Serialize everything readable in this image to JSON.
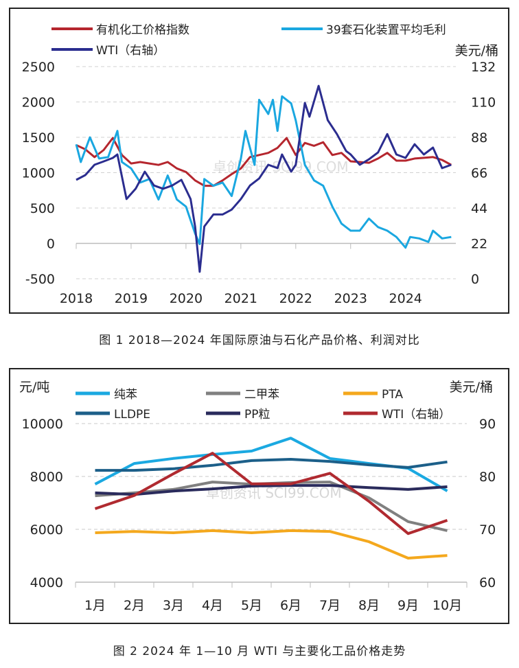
{
  "chart_data": [
    {
      "type": "line",
      "caption": "图 1 2018—2024 年国际原油与石化产品价格、利润对比",
      "right_axis_unit": "美元/桶",
      "xlim": [
        "2018-01",
        "2024-11"
      ],
      "x_ticks": [
        "2018",
        "2019",
        "2020",
        "2021",
        "2022",
        "2023",
        "2024"
      ],
      "y_left": {
        "lim": [
          -500,
          2500
        ],
        "ticks": [
          "-500",
          "0",
          "500",
          "1000",
          "1500",
          "2000",
          "2500"
        ]
      },
      "y_right": {
        "lim": [
          0,
          132
        ],
        "ticks": [
          "0",
          "22",
          "44",
          "66",
          "88",
          "110",
          "132"
        ]
      },
      "grid": true,
      "legend_position": "top",
      "watermark": "卓创资讯 SCI99.COM",
      "series": [
        {
          "name": "有机化工价格指数",
          "axis": "left",
          "color": "#b5262e",
          "points": [
            [
              "2018-01",
              1390
            ],
            [
              "2018-03",
              1330
            ],
            [
              "2018-05",
              1220
            ],
            [
              "2018-07",
              1320
            ],
            [
              "2018-09",
              1490
            ],
            [
              "2018-11",
              1250
            ],
            [
              "2019-01",
              1130
            ],
            [
              "2019-03",
              1150
            ],
            [
              "2019-05",
              1130
            ],
            [
              "2019-07",
              1110
            ],
            [
              "2019-09",
              1150
            ],
            [
              "2019-11",
              1060
            ],
            [
              "2020-01",
              1010
            ],
            [
              "2020-03",
              890
            ],
            [
              "2020-05",
              815
            ],
            [
              "2020-07",
              815
            ],
            [
              "2020-09",
              890
            ],
            [
              "2020-11",
              980
            ],
            [
              "2021-01",
              1060
            ],
            [
              "2021-03",
              1220
            ],
            [
              "2021-05",
              1250
            ],
            [
              "2021-07",
              1280
            ],
            [
              "2021-09",
              1350
            ],
            [
              "2021-11",
              1490
            ],
            [
              "2022-01",
              1250
            ],
            [
              "2022-03",
              1420
            ],
            [
              "2022-05",
              1380
            ],
            [
              "2022-07",
              1430
            ],
            [
              "2022-09",
              1250
            ],
            [
              "2022-11",
              1280
            ],
            [
              "2023-01",
              1160
            ],
            [
              "2023-03",
              1150
            ],
            [
              "2023-05",
              1140
            ],
            [
              "2023-07",
              1200
            ],
            [
              "2023-09",
              1280
            ],
            [
              "2023-11",
              1170
            ],
            [
              "2024-01",
              1170
            ],
            [
              "2024-03",
              1200
            ],
            [
              "2024-05",
              1210
            ],
            [
              "2024-07",
              1220
            ],
            [
              "2024-09",
              1180
            ],
            [
              "2024-11",
              1110
            ]
          ]
        },
        {
          "name": "39套石化装置平均毛利",
          "axis": "left",
          "color": "#1aa7e0",
          "points": [
            [
              "2018-01",
              1400
            ],
            [
              "2018-02",
              1150
            ],
            [
              "2018-04",
              1500
            ],
            [
              "2018-06",
              1200
            ],
            [
              "2018-08",
              1220
            ],
            [
              "2018-10",
              1590
            ],
            [
              "2018-11",
              1150
            ],
            [
              "2019-01",
              1060
            ],
            [
              "2019-03",
              860
            ],
            [
              "2019-05",
              910
            ],
            [
              "2019-07",
              620
            ],
            [
              "2019-09",
              960
            ],
            [
              "2019-11",
              620
            ],
            [
              "2020-01",
              520
            ],
            [
              "2020-03",
              140
            ],
            [
              "2020-04",
              -10
            ],
            [
              "2020-05",
              910
            ],
            [
              "2020-07",
              815
            ],
            [
              "2020-09",
              860
            ],
            [
              "2020-11",
              670
            ],
            [
              "2021-01",
              1200
            ],
            [
              "2021-02",
              1590
            ],
            [
              "2021-04",
              1110
            ],
            [
              "2021-05",
              2030
            ],
            [
              "2021-07",
              1830
            ],
            [
              "2021-08",
              2030
            ],
            [
              "2021-09",
              1590
            ],
            [
              "2021-10",
              2080
            ],
            [
              "2021-12",
              1980
            ],
            [
              "2022-01",
              1740
            ],
            [
              "2022-03",
              1110
            ],
            [
              "2022-05",
              890
            ],
            [
              "2022-07",
              815
            ],
            [
              "2022-09",
              520
            ],
            [
              "2022-11",
              280
            ],
            [
              "2023-01",
              180
            ],
            [
              "2023-03",
              180
            ],
            [
              "2023-05",
              350
            ],
            [
              "2023-07",
              230
            ],
            [
              "2023-09",
              180
            ],
            [
              "2023-11",
              90
            ],
            [
              "2024-01",
              -60
            ],
            [
              "2024-02",
              90
            ],
            [
              "2024-04",
              70
            ],
            [
              "2024-06",
              20
            ],
            [
              "2024-07",
              180
            ],
            [
              "2024-09",
              70
            ],
            [
              "2024-11",
              90
            ]
          ]
        },
        {
          "name": "WTI（右轴）",
          "axis": "right",
          "color": "#2b2d8f",
          "points": [
            [
              "2018-01",
              61.5
            ],
            [
              "2018-03",
              64.5
            ],
            [
              "2018-05",
              70.9
            ],
            [
              "2018-07",
              73.0
            ],
            [
              "2018-09",
              75.2
            ],
            [
              "2018-10",
              77.3
            ],
            [
              "2018-12",
              49.6
            ],
            [
              "2019-02",
              56
            ],
            [
              "2019-04",
              66.6
            ],
            [
              "2019-06",
              58
            ],
            [
              "2019-08",
              56
            ],
            [
              "2019-10",
              58
            ],
            [
              "2019-12",
              61.5
            ],
            [
              "2020-02",
              49.6
            ],
            [
              "2020-03",
              32.5
            ],
            [
              "2020-04",
              4.3
            ],
            [
              "2020-05",
              32.5
            ],
            [
              "2020-07",
              40
            ],
            [
              "2020-09",
              40
            ],
            [
              "2020-11",
              43
            ],
            [
              "2021-01",
              49.6
            ],
            [
              "2021-03",
              58
            ],
            [
              "2021-05",
              62.4
            ],
            [
              "2021-07",
              70.9
            ],
            [
              "2021-09",
              68.8
            ],
            [
              "2021-10",
              77.3
            ],
            [
              "2021-12",
              66.6
            ],
            [
              "2022-01",
              70.9
            ],
            [
              "2022-03",
              109.4
            ],
            [
              "2022-04",
              100.8
            ],
            [
              "2022-06",
              120
            ],
            [
              "2022-08",
              98.7
            ],
            [
              "2022-10",
              90
            ],
            [
              "2022-12",
              79.5
            ],
            [
              "2023-01",
              77.3
            ],
            [
              "2023-03",
              70.9
            ],
            [
              "2023-05",
              74.3
            ],
            [
              "2023-07",
              78.6
            ],
            [
              "2023-09",
              90
            ],
            [
              "2023-11",
              77.3
            ],
            [
              "2024-01",
              75.2
            ],
            [
              "2024-03",
              83.7
            ],
            [
              "2024-05",
              77.3
            ],
            [
              "2024-07",
              81.6
            ],
            [
              "2024-09",
              68.8
            ],
            [
              "2024-11",
              70.9
            ]
          ]
        }
      ]
    },
    {
      "type": "line",
      "caption": "图 2  2024 年 1—10 月 WTI 与主要化工品价格走势",
      "left_axis_unit": "元/吨",
      "right_axis_unit": "美元/桶",
      "categories": [
        "1月",
        "2月",
        "3月",
        "4月",
        "5月",
        "6月",
        "7月",
        "8月",
        "9月",
        "10月"
      ],
      "y_left": {
        "lim": [
          4000,
          10000
        ],
        "ticks": [
          "4000",
          "6000",
          "8000",
          "10000"
        ]
      },
      "y_right": {
        "lim": [
          60,
          90
        ],
        "ticks": [
          "60",
          "70",
          "80",
          "90"
        ]
      },
      "grid": true,
      "legend_position": "top",
      "watermark": "卓创资讯 SCI99.COM",
      "series": [
        {
          "name": "纯苯",
          "axis": "left",
          "color": "#1ba9e1",
          "values": [
            7710,
            8490,
            8680,
            8830,
            8960,
            9450,
            8680,
            8490,
            8310,
            7450
          ]
        },
        {
          "name": "二甲苯",
          "axis": "left",
          "color": "#808080",
          "values": [
            7270,
            7380,
            7510,
            7790,
            7710,
            7770,
            7790,
            7190,
            6290,
            5950
          ]
        },
        {
          "name": "PTA",
          "axis": "left",
          "color": "#f4a81d",
          "values": [
            5870,
            5920,
            5870,
            5950,
            5870,
            5950,
            5920,
            5530,
            4910,
            5010
          ]
        },
        {
          "name": "LLDPE",
          "axis": "left",
          "color": "#1c5f89",
          "values": [
            8230,
            8230,
            8290,
            8420,
            8600,
            8650,
            8570,
            8440,
            8340,
            8550
          ]
        },
        {
          "name": "PP粒",
          "axis": "left",
          "color": "#2a2b5c",
          "values": [
            7380,
            7320,
            7450,
            7530,
            7640,
            7660,
            7660,
            7580,
            7510,
            7610
          ]
        },
        {
          "name": "WTI（右轴）",
          "axis": "right",
          "color": "#b02a30",
          "values": [
            73.9,
            76.4,
            80.5,
            84.4,
            78.6,
            78.6,
            80.6,
            75.3,
            69.2,
            71.7
          ]
        }
      ]
    }
  ]
}
